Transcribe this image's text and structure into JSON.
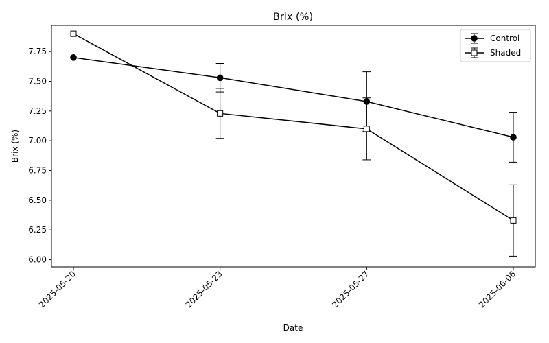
{
  "chart_data": {
    "type": "line",
    "title": "Brix (%)",
    "xlabel": "Date",
    "ylabel": "Brix (%)",
    "categories": [
      "2025-05-20",
      "2025-05-23",
      "2025-05-27",
      "2025-06-06"
    ],
    "ylim": [
      5.94,
      7.97
    ],
    "yticks": [
      "6.00",
      "6.25",
      "6.50",
      "6.75",
      "7.00",
      "7.25",
      "7.50",
      "7.75"
    ],
    "grid": false,
    "legend_position": "top-right",
    "series": [
      {
        "name": "Control",
        "marker": "circle",
        "values": [
          7.7,
          7.53,
          7.33,
          7.03
        ],
        "errors": [
          null,
          0.12,
          0.25,
          0.21
        ],
        "line_color": "#000000",
        "marker_fill": "#000000"
      },
      {
        "name": "Shaded",
        "marker": "square",
        "values": [
          7.9,
          7.23,
          7.1,
          6.33
        ],
        "errors": [
          null,
          0.21,
          0.26,
          0.3
        ],
        "line_color": "#000000",
        "marker_fill": "#ffffff"
      }
    ]
  }
}
